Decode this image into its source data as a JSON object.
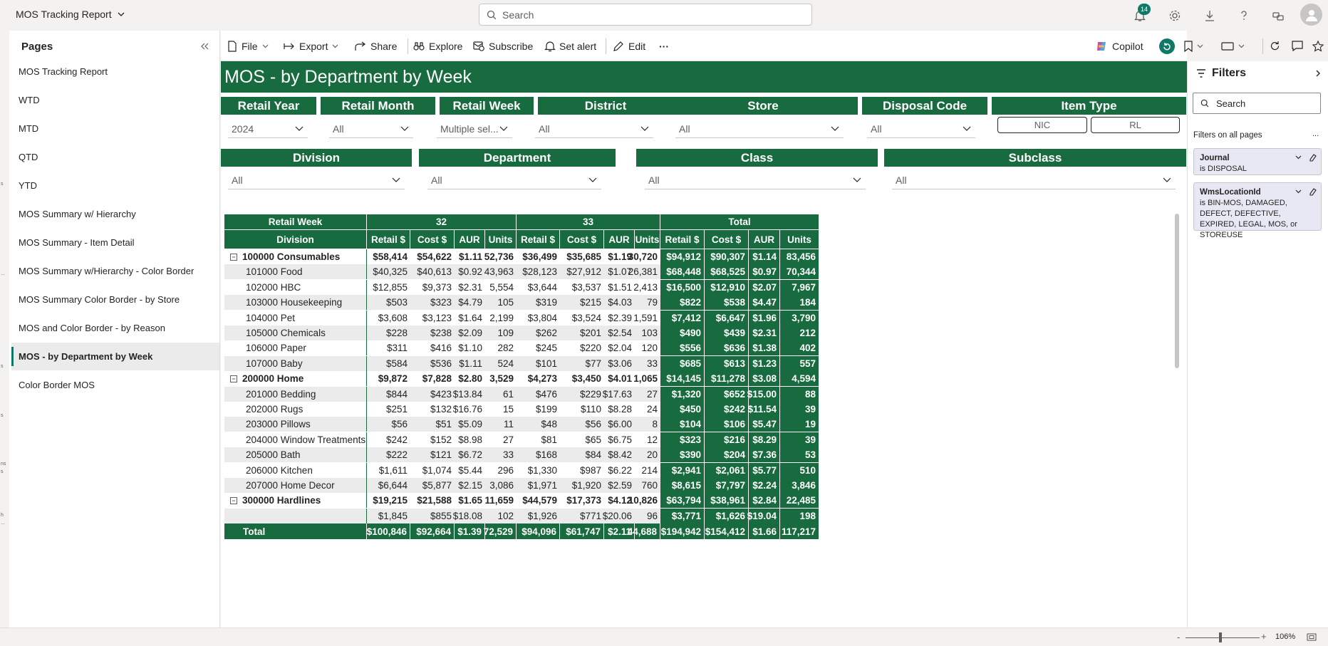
{
  "app": {
    "title": "MOS Tracking Report",
    "search_placeholder": "Search",
    "notification_count": "14"
  },
  "left_strip": [
    "s",
    "...",
    "s",
    "s",
    "ns",
    "s",
    "h",
    "..."
  ],
  "pages": {
    "title": "Pages",
    "items": [
      {
        "label": "MOS Tracking Report",
        "active": false
      },
      {
        "label": "WTD",
        "active": false
      },
      {
        "label": "MTD",
        "active": false
      },
      {
        "label": "QTD",
        "active": false
      },
      {
        "label": "YTD",
        "active": false
      },
      {
        "label": "MOS Summary w/ Hierarchy",
        "active": false
      },
      {
        "label": "MOS Summary - Item Detail",
        "active": false
      },
      {
        "label": "MOS Summary w/Hierarchy - Color Border",
        "active": false
      },
      {
        "label": "MOS Summary Color Border - by Store",
        "active": false
      },
      {
        "label": "MOS and Color Border - by Reason",
        "active": false
      },
      {
        "label": "MOS - by Department by Week",
        "active": true
      },
      {
        "label": "Color Border MOS",
        "active": false
      }
    ]
  },
  "toolbar": {
    "file": "File",
    "export": "Export",
    "share": "Share",
    "explore": "Explore",
    "subscribe": "Subscribe",
    "set_alert": "Set alert",
    "edit": "Edit",
    "more": "···",
    "copilot": "Copilot"
  },
  "report": {
    "title": "MOS - by Department by Week",
    "slicers_row1": [
      {
        "label": "Retail Year",
        "value": "2024"
      },
      {
        "label": "Retail Month",
        "value": "All"
      },
      {
        "label": "Retail Week",
        "value": "Multiple sel..."
      },
      {
        "label": "District",
        "value": "All"
      },
      {
        "label": "Store",
        "value": "All"
      },
      {
        "label": "Disposal Code",
        "value": "All"
      }
    ],
    "item_type": {
      "label": "Item Type",
      "tiles": [
        "NIC",
        "RL"
      ]
    },
    "slicers_row2": [
      {
        "label": "Division",
        "value": "All"
      },
      {
        "label": "Department",
        "value": "All"
      },
      {
        "label": "Class",
        "value": "All"
      },
      {
        "label": "Subclass",
        "value": "All"
      }
    ]
  },
  "matrix": {
    "row_header_1": "Retail Week",
    "row_header_2": "Division",
    "column_groups": [
      "32",
      "33",
      "Total"
    ],
    "measures": [
      "Retail $",
      "Cost $",
      "AUR",
      "Units"
    ],
    "rows": [
      {
        "label": "100000 Consumables",
        "group": true,
        "values": [
          "$58,414",
          "$54,622",
          "$1.11",
          "52,736",
          "$36,499",
          "$35,685",
          "$1.19",
          "30,720"
        ],
        "totals": [
          "$94,912",
          "$90,307",
          "$1.14",
          "83,456"
        ]
      },
      {
        "label": "101000 Food",
        "group": false,
        "values": [
          "$40,325",
          "$40,613",
          "$0.92",
          "43,963",
          "$28,123",
          "$27,912",
          "$1.07",
          "26,381"
        ],
        "totals": [
          "$68,448",
          "$68,525",
          "$0.97",
          "70,344"
        ]
      },
      {
        "label": "102000 HBC",
        "group": false,
        "values": [
          "$12,855",
          "$9,373",
          "$2.31",
          "5,554",
          "$3,644",
          "$3,537",
          "$1.51",
          "2,413"
        ],
        "totals": [
          "$16,500",
          "$12,910",
          "$2.07",
          "7,967"
        ]
      },
      {
        "label": "103000 Housekeeping",
        "group": false,
        "values": [
          "$503",
          "$323",
          "$4.79",
          "105",
          "$319",
          "$215",
          "$4.03",
          "79"
        ],
        "totals": [
          "$822",
          "$538",
          "$4.47",
          "184"
        ]
      },
      {
        "label": "104000 Pet",
        "group": false,
        "values": [
          "$3,608",
          "$3,123",
          "$1.64",
          "2,199",
          "$3,804",
          "$3,524",
          "$2.39",
          "1,591"
        ],
        "totals": [
          "$7,412",
          "$6,647",
          "$1.96",
          "3,790"
        ]
      },
      {
        "label": "105000 Chemicals",
        "group": false,
        "values": [
          "$228",
          "$238",
          "$2.09",
          "109",
          "$262",
          "$201",
          "$2.54",
          "103"
        ],
        "totals": [
          "$490",
          "$439",
          "$2.31",
          "212"
        ]
      },
      {
        "label": "106000 Paper",
        "group": false,
        "values": [
          "$311",
          "$416",
          "$1.10",
          "282",
          "$245",
          "$220",
          "$2.04",
          "120"
        ],
        "totals": [
          "$556",
          "$636",
          "$1.38",
          "402"
        ]
      },
      {
        "label": "107000 Baby",
        "group": false,
        "values": [
          "$584",
          "$536",
          "$1.11",
          "524",
          "$101",
          "$77",
          "$3.06",
          "33"
        ],
        "totals": [
          "$685",
          "$613",
          "$1.23",
          "557"
        ]
      },
      {
        "label": "200000 Home",
        "group": true,
        "values": [
          "$9,872",
          "$7,828",
          "$2.80",
          "3,529",
          "$4,273",
          "$3,450",
          "$4.01",
          "1,065"
        ],
        "totals": [
          "$14,145",
          "$11,278",
          "$3.08",
          "4,594"
        ]
      },
      {
        "label": "201000 Bedding",
        "group": false,
        "values": [
          "$844",
          "$423",
          "$13.84",
          "61",
          "$476",
          "$229",
          "$17.63",
          "27"
        ],
        "totals": [
          "$1,320",
          "$652",
          "$15.00",
          "88"
        ]
      },
      {
        "label": "202000 Rugs",
        "group": false,
        "values": [
          "$251",
          "$132",
          "$16.76",
          "15",
          "$199",
          "$110",
          "$8.28",
          "24"
        ],
        "totals": [
          "$450",
          "$242",
          "$11.54",
          "39"
        ]
      },
      {
        "label": "203000 Pillows",
        "group": false,
        "values": [
          "$56",
          "$51",
          "$5.09",
          "11",
          "$48",
          "$56",
          "$6.00",
          "8"
        ],
        "totals": [
          "$104",
          "$106",
          "$5.47",
          "19"
        ]
      },
      {
        "label": "204000 Window Treatments",
        "group": false,
        "values": [
          "$242",
          "$152",
          "$8.98",
          "27",
          "$81",
          "$65",
          "$6.75",
          "12"
        ],
        "totals": [
          "$323",
          "$216",
          "$8.29",
          "39"
        ]
      },
      {
        "label": "205000 Bath",
        "group": false,
        "values": [
          "$222",
          "$121",
          "$6.72",
          "33",
          "$168",
          "$84",
          "$8.42",
          "20"
        ],
        "totals": [
          "$390",
          "$204",
          "$7.36",
          "53"
        ]
      },
      {
        "label": "206000 Kitchen",
        "group": false,
        "values": [
          "$1,611",
          "$1,074",
          "$5.44",
          "296",
          "$1,330",
          "$987",
          "$6.22",
          "214"
        ],
        "totals": [
          "$2,941",
          "$2,061",
          "$5.77",
          "510"
        ]
      },
      {
        "label": "207000 Home Decor",
        "group": false,
        "values": [
          "$6,644",
          "$5,877",
          "$2.15",
          "3,086",
          "$1,971",
          "$1,920",
          "$2.59",
          "760"
        ],
        "totals": [
          "$8,615",
          "$7,797",
          "$2.24",
          "3,846"
        ]
      },
      {
        "label": "300000 Hardlines",
        "group": true,
        "values": [
          "$19,215",
          "$21,588",
          "$1.65",
          "11,659",
          "$44,579",
          "$17,373",
          "$4.12",
          "10,826"
        ],
        "totals": [
          "$63,794",
          "$38,961",
          "$2.84",
          "22,485"
        ]
      },
      {
        "label": "",
        "group": false,
        "values": [
          "$1,845",
          "$855",
          "$18.08",
          "102",
          "$1,926",
          "$771",
          "$20.06",
          "96"
        ],
        "totals": [
          "$3,771",
          "$1,626",
          "$19.04",
          "198"
        ]
      }
    ],
    "total_row": {
      "label": "Total",
      "values": [
        "$100,846",
        "$92,664",
        "$1.39",
        "72,529",
        "$94,096",
        "$61,747",
        "$2.11",
        "44,688"
      ],
      "totals": [
        "$194,942",
        "$154,412",
        "$1.66",
        "117,217"
      ]
    }
  },
  "filters": {
    "title": "Filters",
    "search_placeholder": "Search",
    "section": "Filters on all pages",
    "more": "...",
    "cards": [
      {
        "name": "Journal",
        "value": "is DISPOSAL"
      },
      {
        "name": "WmsLocationId",
        "value": "is BIN-MOS, DAMAGED, DEFECT, DEFECTIVE, EXPIRED, LEGAL, MOS, or STOREUSE"
      }
    ]
  },
  "status": {
    "zoom": "106%",
    "minus": "-",
    "plus": "+"
  },
  "colors": {
    "brand_green": "#186b3e",
    "accent_teal": "#117865"
  }
}
